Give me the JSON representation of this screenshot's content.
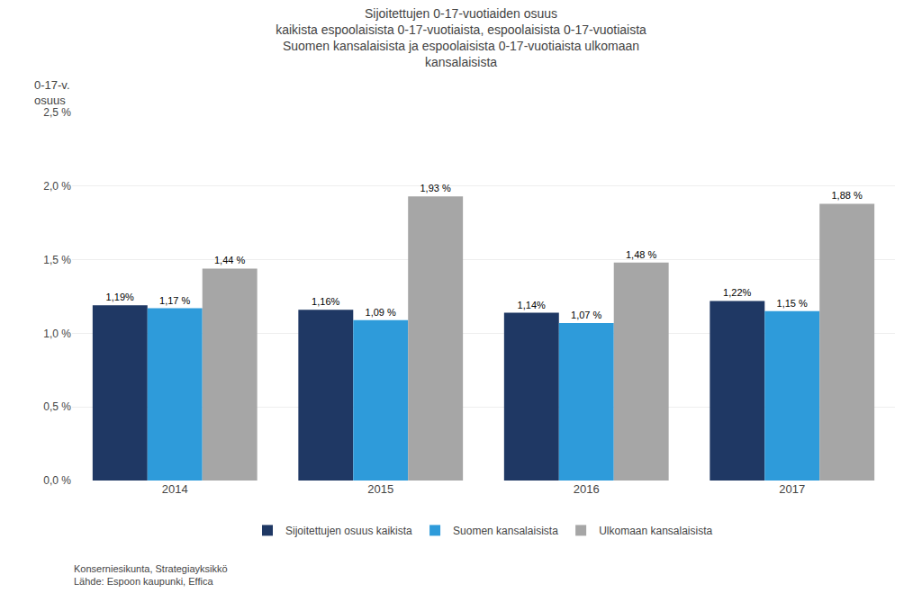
{
  "chart_data": {
    "type": "bar",
    "title": "Sijoitettujen 0-17-vuotiaiden osuus\nkaikista espoolaisista 0-17-vuotiaista, espoolaisista 0-17-vuotiaista\nSuomen kansalaisista ja espoolaisista 0-17-vuotiaista ulkomaan\nkansalaisista",
    "ylabel": "0-17-v.\nosuus",
    "annotations": [
      "Konserniesikunta, Strategiayksikkö",
      "Lähde: Espoon kaupunki, Effica"
    ],
    "categories": [
      "2014",
      "2015",
      "2016",
      "2017"
    ],
    "series": [
      {
        "name": "Sijoitettujen osuus kaikista",
        "color": "#1f3864",
        "values": [
          1.19,
          1.16,
          1.14,
          1.22
        ],
        "value_labels": [
          "1,19%",
          "1,16%",
          "1,14%",
          "1,22%"
        ]
      },
      {
        "name": "Suomen kansalaisista",
        "color": "#2e9bda",
        "values": [
          1.17,
          1.09,
          1.07,
          1.15
        ],
        "value_labels": [
          "1,17 %",
          "1,09 %",
          "1,07 %",
          "1,15 %"
        ]
      },
      {
        "name": "Ulkomaan kansalaisista",
        "color": "#a6a6a6",
        "values": [
          1.44,
          1.93,
          1.48,
          1.88
        ],
        "value_labels": [
          "1,44 %",
          "1,93 %",
          "1,48 %",
          "1,88 %"
        ]
      }
    ],
    "ylim": [
      0.0,
      2.5
    ],
    "yticks": [
      {
        "value": 0.0,
        "label": "0,0 %"
      },
      {
        "value": 0.5,
        "label": "0,5 %"
      },
      {
        "value": 1.0,
        "label": "1,0 %"
      },
      {
        "value": 1.5,
        "label": "1,5 %"
      },
      {
        "value": 2.0,
        "label": "2,0 %"
      },
      {
        "value": 2.5,
        "label": "2,5 %"
      }
    ],
    "grid": true,
    "legend": "bottom",
    "data_labels": true
  }
}
